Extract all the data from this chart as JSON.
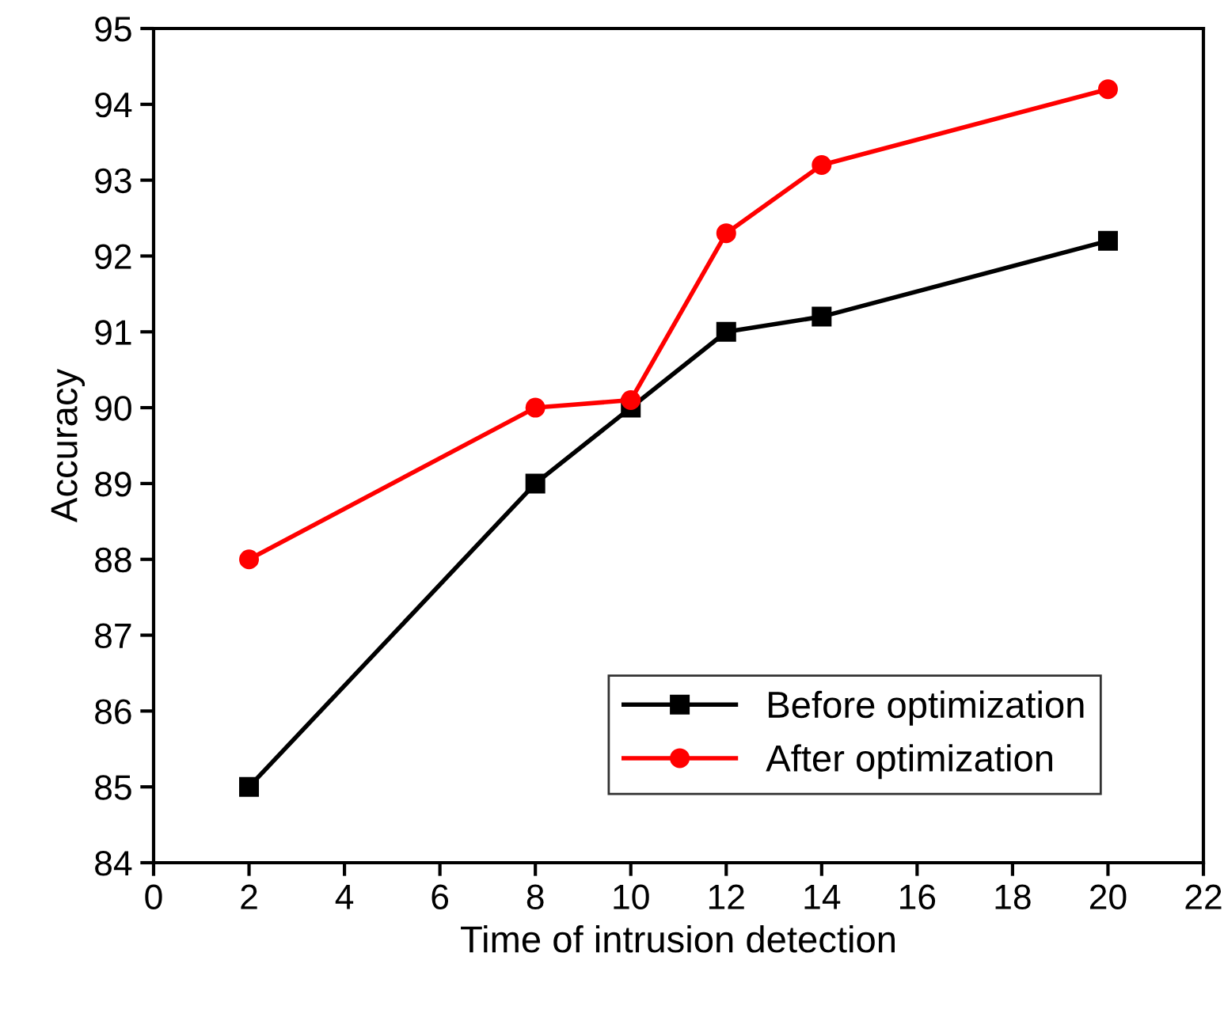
{
  "chart_data": {
    "type": "line",
    "xlabel": "Time of intrusion detection",
    "ylabel": "Accuracy",
    "xlim": [
      0,
      22
    ],
    "xticks": [
      0,
      2,
      4,
      6,
      8,
      10,
      12,
      14,
      16,
      18,
      20,
      22
    ],
    "ylim": [
      84,
      95
    ],
    "yticks": [
      84,
      85,
      86,
      87,
      88,
      89,
      90,
      91,
      92,
      93,
      94,
      95
    ],
    "x": [
      2,
      8,
      10,
      12,
      14,
      20
    ],
    "grid": false,
    "legend": "bottom right",
    "line_style": "solid",
    "series": [
      {
        "name": "Before optimization",
        "color": "#000000",
        "marker": "square",
        "values": [
          85,
          89,
          90,
          91,
          91.2,
          92.2
        ]
      },
      {
        "name": "After optimization",
        "color": "#ff0000",
        "marker": "circle",
        "values": [
          88,
          90,
          90.1,
          92.3,
          93.2,
          94.2
        ]
      }
    ]
  }
}
